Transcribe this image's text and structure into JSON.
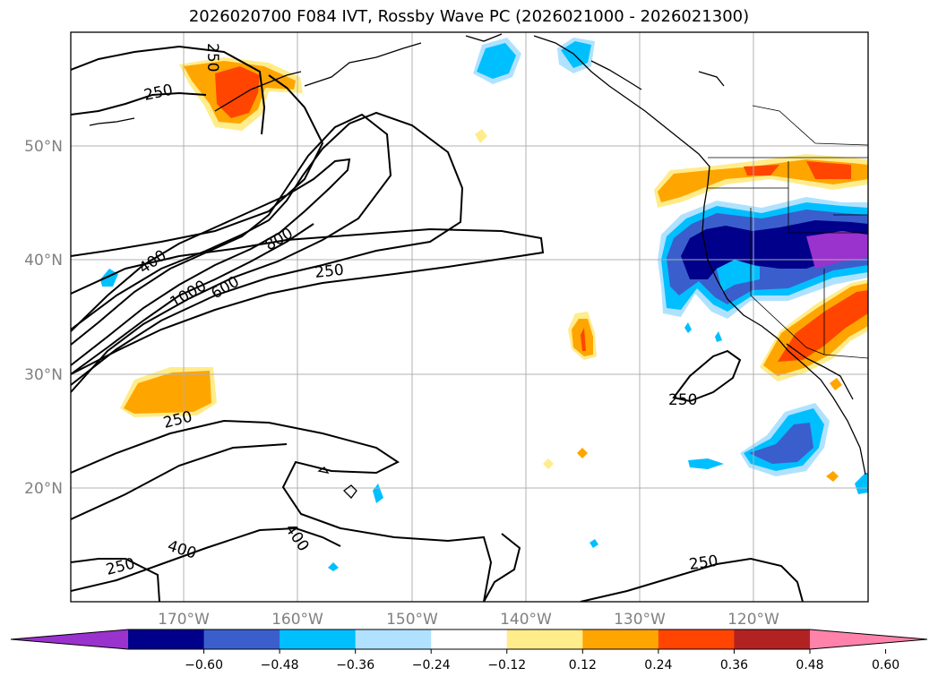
{
  "title": "2026020700 F084 IVT, Rossby Wave PC (2026021000 - 2026021300)",
  "lat_labels": [
    "50°N",
    "40°N",
    "30°N",
    "20°N"
  ],
  "lon_labels": [
    "170°W",
    "160°W",
    "150°W",
    "140°W",
    "130°W",
    "120°W"
  ],
  "colorbar": {
    "ticks": [
      "−0.60",
      "−0.48",
      "−0.36",
      "−0.24",
      "−0.12",
      "0.12",
      "0.24",
      "0.36",
      "0.48",
      "0.60"
    ],
    "colors": [
      "#9a32cd",
      "#00008b",
      "#3a5fcd",
      "#00bfff",
      "#b0e2ff",
      "#ffffff",
      "#ffec8b",
      "#ffa500",
      "#ff4500",
      "#b22222",
      "#ff82ab"
    ]
  },
  "ivt_contour_labels": [
    "250",
    "250",
    "250",
    "250",
    "250",
    "250",
    "400",
    "400",
    "400",
    "600",
    "800",
    "1000",
    "250"
  ]
}
